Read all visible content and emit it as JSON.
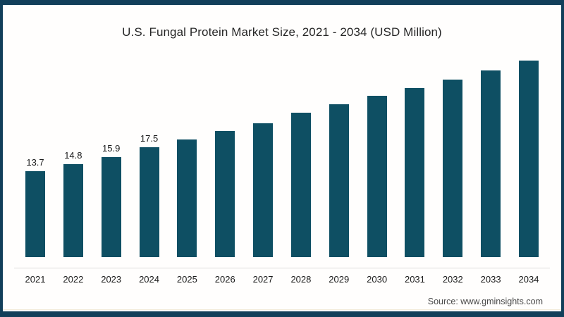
{
  "page": {
    "frame_color": "#123f5a",
    "background": "#fffefd"
  },
  "chart_data": {
    "type": "bar",
    "title": "U.S. Fungal Protein Market Size, 2021 - 2034 (USD Million)",
    "xlabel": "",
    "ylabel": "",
    "categories": [
      "2021",
      "2022",
      "2023",
      "2024",
      "2025",
      "2026",
      "2027",
      "2028",
      "2029",
      "2030",
      "2031",
      "2032",
      "2033",
      "2034"
    ],
    "values": [
      13.7,
      14.8,
      15.9,
      17.5,
      18.8,
      20.1,
      21.4,
      23.0,
      24.4,
      25.7,
      27.0,
      28.3,
      29.8,
      31.3
    ],
    "bar_labels": [
      "13.7",
      "14.8",
      "15.9",
      "17.5",
      "",
      "",
      "",
      "",
      "",
      "",
      "",
      "",
      "",
      ""
    ],
    "bar_color": "#0e4f63",
    "axis_line_color": "#dcdcdc",
    "ylim": [
      0,
      35
    ],
    "grid": false,
    "legend_position": "none"
  },
  "footer": {
    "source": "Source: www.gminsights.com"
  }
}
